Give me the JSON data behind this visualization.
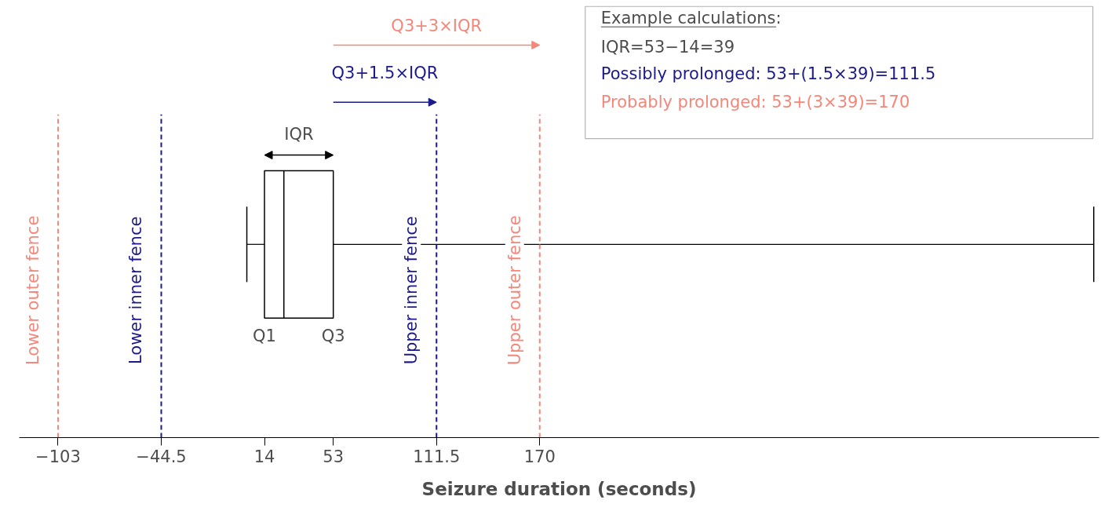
{
  "chart_data": {
    "type": "box",
    "orientation": "horizontal",
    "xlabel": "Seizure duration (seconds)",
    "categories": [
      null
    ],
    "boxes": [
      {
        "low": 4,
        "q1": 14,
        "median": 25,
        "q3": 53,
        "high": 484
      }
    ],
    "color": "#000000",
    "xlim": [
      -125,
      487
    ],
    "xticks": [
      -103,
      -44.5,
      14,
      53,
      111.5,
      170
    ],
    "ref_lines": [
      {
        "axis": "x",
        "value": -103,
        "label": "Lower outer fence",
        "color": "#f4877a",
        "line_style": "dashed"
      },
      {
        "axis": "x",
        "value": -44.5,
        "label": "Lower inner fence",
        "color": "#1a1a8c",
        "line_style": "dashed"
      },
      {
        "axis": "x",
        "value": 111.5,
        "label": "Upper inner fence",
        "color": "#1a1a8c",
        "line_style": "dashed"
      },
      {
        "axis": "x",
        "value": 170,
        "label": "Upper outer fence",
        "color": "#f4877a",
        "line_style": "dashed"
      }
    ],
    "annotations": [
      "IQR",
      "Q1",
      "Q3",
      "Q3+1.5×IQR",
      "Q3+3×IQR",
      "Example calculations:",
      "IQR=53−14=39",
      "Possibly prolonged:  53+(1.5×39)=111.5",
      "Probably prolonged: 53+(3×39)=170"
    ],
    "grid": false
  }
}
